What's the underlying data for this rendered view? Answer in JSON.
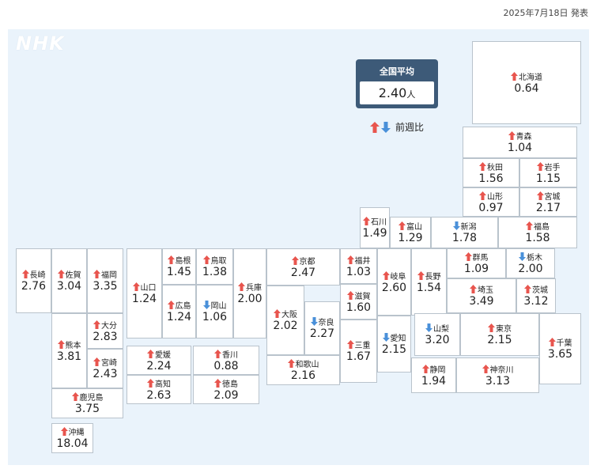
{
  "header": {
    "date": "2025年7月18日 発表"
  },
  "logo": "NHK",
  "national": {
    "label": "全国平均",
    "value": "2.40",
    "unit": "人"
  },
  "legend": {
    "label": "前週比"
  },
  "prefectures": [
    {
      "name": "北海道",
      "value": "0.64",
      "trend": "up"
    },
    {
      "name": "青森",
      "value": "1.04",
      "trend": "up"
    },
    {
      "name": "秋田",
      "value": "1.56",
      "trend": "up"
    },
    {
      "name": "岩手",
      "value": "1.15",
      "trend": "up"
    },
    {
      "name": "山形",
      "value": "0.97",
      "trend": "up"
    },
    {
      "name": "宮城",
      "value": "2.17",
      "trend": "up"
    },
    {
      "name": "石川",
      "value": "1.49",
      "trend": "up"
    },
    {
      "name": "富山",
      "value": "1.29",
      "trend": "up"
    },
    {
      "name": "新潟",
      "value": "1.78",
      "trend": "down"
    },
    {
      "name": "福島",
      "value": "1.58",
      "trend": "up"
    },
    {
      "name": "長崎",
      "value": "2.76",
      "trend": "up"
    },
    {
      "name": "佐賀",
      "value": "3.04",
      "trend": "up"
    },
    {
      "name": "福岡",
      "value": "3.35",
      "trend": "up"
    },
    {
      "name": "山口",
      "value": "1.24",
      "trend": "up"
    },
    {
      "name": "島根",
      "value": "1.45",
      "trend": "up"
    },
    {
      "name": "鳥取",
      "value": "1.38",
      "trend": "up"
    },
    {
      "name": "兵庫",
      "value": "2.00",
      "trend": "up"
    },
    {
      "name": "京都",
      "value": "2.47",
      "trend": "up"
    },
    {
      "name": "福井",
      "value": "1.03",
      "trend": "up"
    },
    {
      "name": "岐阜",
      "value": "2.60",
      "trend": "up"
    },
    {
      "name": "長野",
      "value": "1.54",
      "trend": "up"
    },
    {
      "name": "群馬",
      "value": "1.09",
      "trend": "up"
    },
    {
      "name": "栃木",
      "value": "2.00",
      "trend": "down"
    },
    {
      "name": "広島",
      "value": "1.24",
      "trend": "up"
    },
    {
      "name": "岡山",
      "value": "1.06",
      "trend": "down"
    },
    {
      "name": "大阪",
      "value": "2.02",
      "trend": "up"
    },
    {
      "name": "奈良",
      "value": "2.27",
      "trend": "down"
    },
    {
      "name": "滋賀",
      "value": "1.60",
      "trend": "up"
    },
    {
      "name": "埼玉",
      "value": "3.49",
      "trend": "up"
    },
    {
      "name": "茨城",
      "value": "3.12",
      "trend": "up"
    },
    {
      "name": "熊本",
      "value": "3.81",
      "trend": "up"
    },
    {
      "name": "大分",
      "value": "2.83",
      "trend": "up"
    },
    {
      "name": "宮崎",
      "value": "2.43",
      "trend": "up"
    },
    {
      "name": "三重",
      "value": "1.67",
      "trend": "up"
    },
    {
      "name": "愛知",
      "value": "2.15",
      "trend": "down"
    },
    {
      "name": "山梨",
      "value": "3.20",
      "trend": "down"
    },
    {
      "name": "東京",
      "value": "2.15",
      "trend": "up"
    },
    {
      "name": "千葉",
      "value": "3.65",
      "trend": "up"
    },
    {
      "name": "愛媛",
      "value": "2.24",
      "trend": "up"
    },
    {
      "name": "香川",
      "value": "0.88",
      "trend": "up"
    },
    {
      "name": "高知",
      "value": "2.63",
      "trend": "up"
    },
    {
      "name": "徳島",
      "value": "2.09",
      "trend": "up"
    },
    {
      "name": "和歌山",
      "value": "2.16",
      "trend": "up"
    },
    {
      "name": "静岡",
      "value": "1.94",
      "trend": "up"
    },
    {
      "name": "神奈川",
      "value": "3.13",
      "trend": "up"
    },
    {
      "name": "鹿児島",
      "value": "3.75",
      "trend": "up"
    },
    {
      "name": "沖縄",
      "value": "18.04",
      "trend": "up"
    }
  ]
}
